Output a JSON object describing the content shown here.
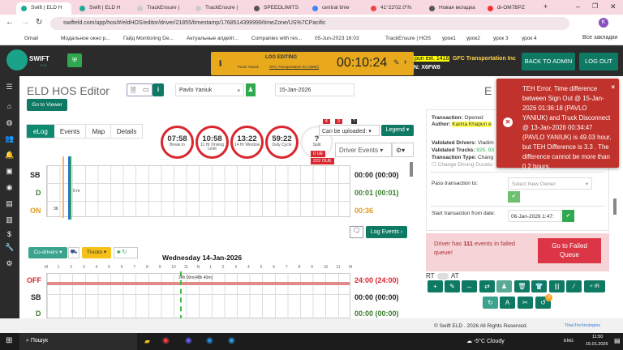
{
  "browser": {
    "tabs": [
      "Swift | ELD H",
      "Swift | ELD H",
      "TrackEnsure |",
      "TrackEnsure |",
      "SPEEDLIMITS",
      "central time",
      "41°22'02.0\"N",
      "Новая вкладка",
      "di-OM7BPZ"
    ],
    "url": "swifteld.com/app/hos/#/eldHOS/editor/driver/21855/timestamp/1768514399999/timeZone/US%7CPacific",
    "bookmarks": [
      "Gmail",
      "Модальное окно р...",
      "Гайд Monitoring De...",
      "Актуальные апдейт...",
      "Companies with res...",
      "05-Jun-2023 16:03",
      "TrackEnsure | HOS",
      "урок1",
      "урок2",
      "урок 3",
      "урок 4",
      "Все закладки"
    ]
  },
  "header": {
    "logo": "SWIFT",
    "logo_sub": "ELD",
    "log_editing": "LOG EDITING",
    "log_driver": "Pavlo Yaniuk",
    "log_company": "GFC Transportation Inc (5882)",
    "timer": "00:10:24",
    "author_tag": "pun ext. 1416",
    "company": "GFC Transportation Inc",
    "vin": "N: X6FW8",
    "back_to_admin": "BACK TO ADMIN",
    "logout": "LOG OUT"
  },
  "page": {
    "title": "ELD HOS Editor",
    "driver": "Pavlo Yaniuk",
    "date": "15-Jan-2026",
    "go_to_viewer": "Go to Viewer",
    "right_title": "E"
  },
  "tabs": [
    "eLog",
    "Events",
    "Map",
    "Details"
  ],
  "gauges": [
    {
      "value": "07:58",
      "label": "Break In"
    },
    {
      "value": "10:58",
      "label": "11 Hr Driving Limit"
    },
    {
      "value": "13:22",
      "label": "14 Hr Window"
    },
    {
      "value": "59:22",
      "label": "Duty Cycle"
    },
    {
      "value": "?",
      "label": "Split"
    }
  ],
  "badges": {
    "b1": "4",
    "b2": "3",
    "b3": "?",
    "ue": "0 UE",
    "oue": "222 OUE"
  },
  "controls": {
    "can_upload": "Can be uploaded:",
    "legend": "Legend",
    "driver_events": "Driver Events",
    "log_events": "Log Events"
  },
  "log1": {
    "rows": [
      {
        "label": "SB",
        "value": "00:00 (00:00)",
        "color": "#222"
      },
      {
        "label": "D",
        "value": "00:01 (00:01)",
        "color": "#3a7d2c"
      },
      {
        "label": "ON",
        "value": "00:36",
        "color": "#e39a1c"
      }
    ],
    "marks": [
      "0 m",
      "36"
    ]
  },
  "log2": {
    "codrivers": "Co-drivers",
    "trucks": "Trucks",
    "day": "Wednesday 14-Jan-2026",
    "hours": [
      "M",
      "1",
      "2",
      "3",
      "4",
      "5",
      "6",
      "7",
      "8",
      "9",
      "10",
      "11",
      "N",
      "1",
      "2",
      "3",
      "4",
      "5",
      "6",
      "7",
      "8",
      "9",
      "10",
      "11",
      "M"
    ],
    "annotation": "24h 00m(48h 40m)",
    "rows": [
      {
        "label": "OFF",
        "value": "24:00 (24:00)",
        "color": "#d9262f"
      },
      {
        "label": "SB",
        "value": "00:00 (00:00)",
        "color": "#222"
      },
      {
        "label": "D",
        "value": "00:00 (00:00)",
        "color": "#3a7d2c"
      }
    ]
  },
  "transaction": {
    "status_k": "Transaction:",
    "status_v": "Opened",
    "author_k": "Author:",
    "author_v": "Karina Khapun e",
    "drivers_k": "Validated Drivers:",
    "drivers_v": "Vladim",
    "trucks_k": "Validated Trucks:",
    "trucks_v": "925, 93",
    "type_k": "Transaction Type:",
    "type_v": "Chang",
    "change_driving": "Change Driving Duratio",
    "pass_to": "Pass transaction to:",
    "select_owner": "Select New Owner",
    "start_from": "Start transaction from date:",
    "start_date": "06-Jan-2026 1:47:"
  },
  "failed": {
    "text_pre": "Driver has ",
    "count": "111",
    "text_post": " events in failed queue!",
    "button": "Go to Failed Queue"
  },
  "toolbar": {
    "rt": "RT",
    "at": "AT",
    "ir": "+ IR",
    "badge": "3"
  },
  "toast": {
    "message": "TEH Error. Time difference between Sign Out @ 15-Jan-2026 01:36:18 (PAVLO YANIUK) and Truck Disconnect @ 13-Jan-2026 00:34:47 (PAVLO YANIUK) is 49.03 hour, but TEH Difference is 3.3 . The difference cannot be more than 0.2 hours."
  },
  "footer": {
    "copyright": "© Swift ELD . 2026 All Rights Reserved.",
    "brand": "TitanTechnologies"
  },
  "taskbar": {
    "search": "Пошук",
    "weather": "-5°C  Cloudy",
    "lang": "ENG",
    "time": "11:50",
    "date": "15.01.2026"
  }
}
